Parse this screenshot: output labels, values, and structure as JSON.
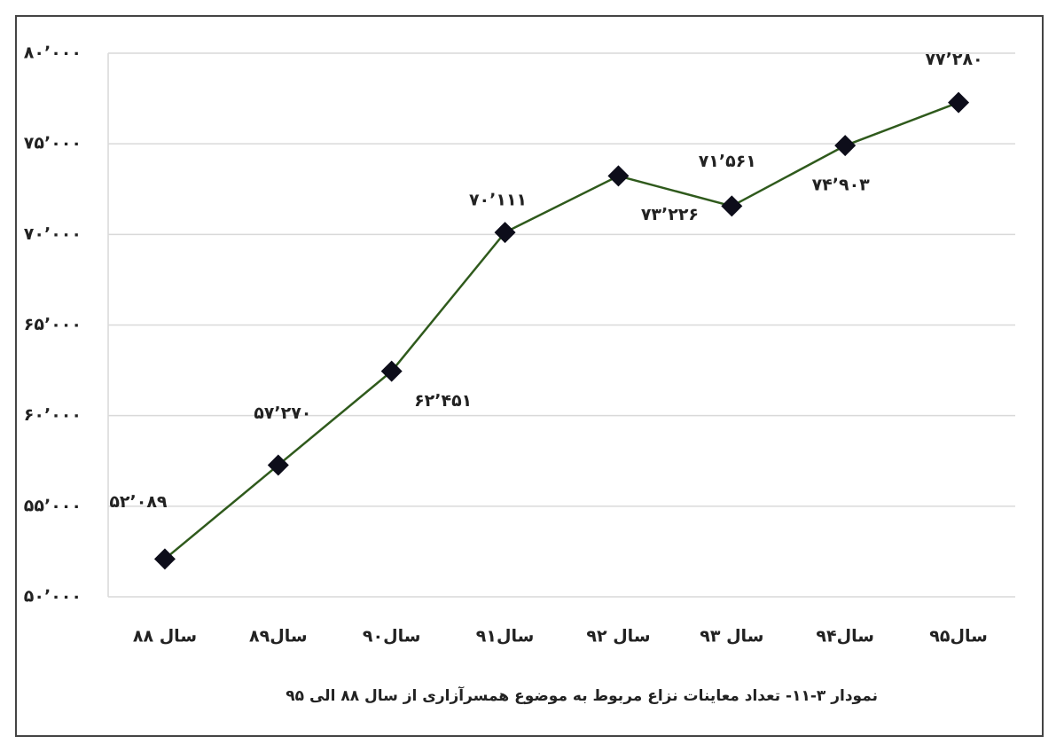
{
  "chart_data": {
    "type": "line",
    "title": "نمودار ۳-۱۱- تعداد معاینات نزاع مربوط به موضوع همسرآزاری از سال ۸۸ الی ۹۵",
    "categories": [
      "سال ۸۸",
      "سال۸۹",
      "سال۹۰",
      "سال۹۱",
      "سال ۹۲",
      "سال ۹۳",
      "سال۹۴",
      "سال۹۵"
    ],
    "values": [
      52089,
      57270,
      62451,
      70111,
      73226,
      71561,
      74903,
      77280
    ],
    "value_labels": [
      "۵۲٬۰۸۹",
      "۵۷٬۲۷۰",
      "۶۲٬۴۵۱",
      "۷۰٬۱۱۱",
      "۷۳٬۲۲۶",
      "۷۱٬۵۶۱",
      "۷۴٬۹۰۳",
      "۷۷٬۲۸۰"
    ],
    "color": "#2f5a1c",
    "marker_color": "#0d0d1a",
    "ylim": [
      50000,
      80000
    ],
    "yticks": [
      {
        "value": 50000,
        "label": "۵۰٬۰۰۰"
      },
      {
        "value": 55000,
        "label": "۵۵٬۰۰۰"
      },
      {
        "value": 60000,
        "label": "۶۰٬۰۰۰"
      },
      {
        "value": 65000,
        "label": "۶۵٬۰۰۰"
      },
      {
        "value": 70000,
        "label": "۷۰٬۰۰۰"
      },
      {
        "value": 75000,
        "label": "۷۵٬۰۰۰"
      },
      {
        "value": 80000,
        "label": "۸۰٬۰۰۰"
      }
    ],
    "grid": true
  }
}
